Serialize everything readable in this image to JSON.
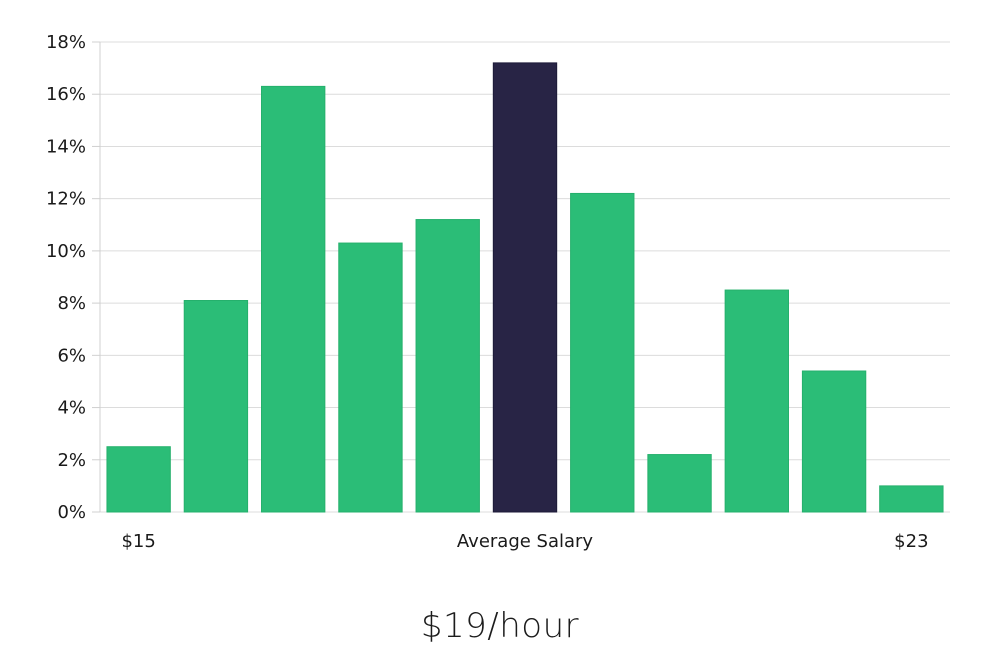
{
  "headline": "$19/hour",
  "chart_data": {
    "type": "bar",
    "title": "",
    "xlabel": "",
    "ylabel": "",
    "ylim": [
      0,
      18
    ],
    "y_ticks": [
      0,
      2,
      4,
      6,
      8,
      10,
      12,
      14,
      16,
      18
    ],
    "y_tick_suffix": "%",
    "grid": true,
    "x_tick_labels": [
      {
        "text": "$15",
        "bar_index": 0
      },
      {
        "text": "Average Salary",
        "bar_index": 5
      },
      {
        "text": "$23",
        "bar_index": 10
      }
    ],
    "values": [
      2.5,
      8.1,
      16.3,
      10.3,
      11.2,
      17.2,
      12.2,
      2.2,
      8.5,
      5.4,
      1.0
    ],
    "highlight_index": 5,
    "colors": {
      "bar": "#2bbd77",
      "highlight": "#282445"
    }
  }
}
